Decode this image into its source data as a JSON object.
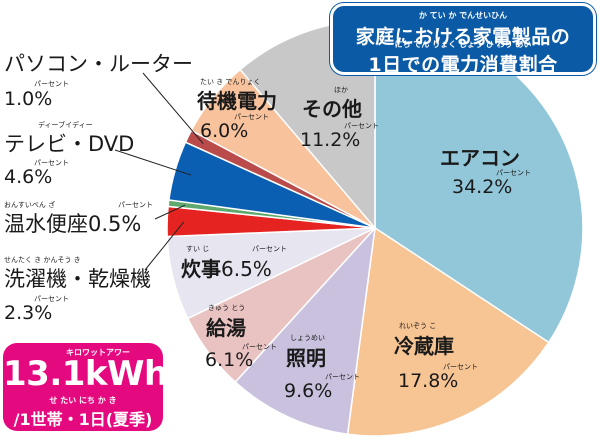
{
  "title": {
    "line1": "家庭における家電製品の",
    "line2": "1日での電力消費割合",
    "ruby1": "か てい           か でんせいひん",
    "ruby2": "にち      でん りょく しょう  ひ  わり あい"
  },
  "total": {
    "value": "13.1kWh",
    "ruby": "キロワットアワー",
    "unit": "/1世帯・1日(夏季)",
    "unit_ruby": "せ たい   にち   か き"
  },
  "chart_data": {
    "type": "pie",
    "title": "家庭における家電製品の1日での電力消費割合",
    "unit": "%",
    "slices": [
      {
        "label": "エアコン",
        "value": 34.2,
        "pct": "34.2%",
        "color": "#92c6d9"
      },
      {
        "label": "冷蔵庫",
        "value": 17.8,
        "pct": "17.8%",
        "color": "#f7c494",
        "ruby": "れいぞう こ"
      },
      {
        "label": "照明",
        "value": 9.6,
        "pct": "9.6%",
        "color": "#c9c1de",
        "ruby": "しょうめい"
      },
      {
        "label": "給湯",
        "value": 6.1,
        "pct": "6.1%",
        "color": "#e9c2c2",
        "ruby": "きゅう とう"
      },
      {
        "label": "炊事",
        "value": 6.5,
        "pct": "6.5%",
        "color": "#e7e5f0",
        "ruby": "すい じ"
      },
      {
        "label": "洗濯機・乾燥機",
        "value": 2.3,
        "pct": "2.3%",
        "color": "#e52421",
        "ruby": "せんたく き    かんそう き"
      },
      {
        "label": "温水便座",
        "value": 0.5,
        "pct": "0.5%",
        "color": "#5fa86e",
        "ruby": "おんすいべん ざ"
      },
      {
        "label": "テレビ・DVD",
        "value": 4.6,
        "pct": "4.6%",
        "color": "#0b5fb3",
        "ruby": "ディーブイディー"
      },
      {
        "label": "パソコン・ルーター",
        "value": 1.0,
        "pct": "1.0%",
        "color": "#b94b4b"
      },
      {
        "label": "待機電力",
        "value": 6.0,
        "pct": "6.0%",
        "color": "#f7c29c",
        "ruby": "たい き でんりょく"
      },
      {
        "label": "その他",
        "value": 11.2,
        "pct": "11.2%",
        "color": "#c8c8c8",
        "ruby": "ほか"
      }
    ],
    "percent_ruby": "パーセント"
  }
}
